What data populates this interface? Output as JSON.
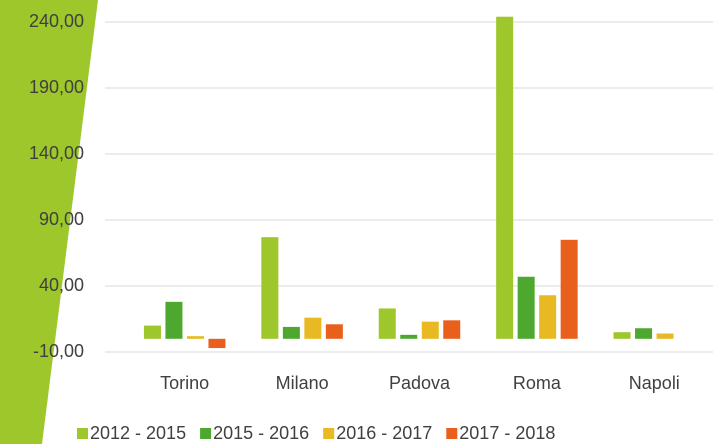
{
  "chart_data": {
    "type": "bar",
    "categories": [
      "Torino",
      "Milano",
      "Padova",
      "Roma",
      "Napoli"
    ],
    "series": [
      {
        "name": "2012 - 2015",
        "color": "#9dc72a",
        "values": [
          10,
          77,
          23,
          244,
          5
        ]
      },
      {
        "name": "2015 - 2016",
        "color": "#4ea72e",
        "values": [
          28,
          9,
          3,
          47,
          8
        ]
      },
      {
        "name": "2016 - 2017",
        "color": "#e8b923",
        "values": [
          2,
          16,
          13,
          33,
          4
        ]
      },
      {
        "name": "2017 - 2018",
        "color": "#e8601c",
        "values": [
          -7,
          11,
          14,
          75,
          null
        ]
      }
    ],
    "ylim": [
      -10,
      240
    ],
    "yticks": [
      {
        "value": -10,
        "label": "-10,00"
      },
      {
        "value": 40,
        "label": "40,00"
      },
      {
        "value": 90,
        "label": "90,00"
      },
      {
        "value": 140,
        "label": "140,00"
      },
      {
        "value": 190,
        "label": "190,00"
      },
      {
        "value": 240,
        "label": "240,00"
      }
    ],
    "grid": true,
    "legend": "bottom"
  }
}
